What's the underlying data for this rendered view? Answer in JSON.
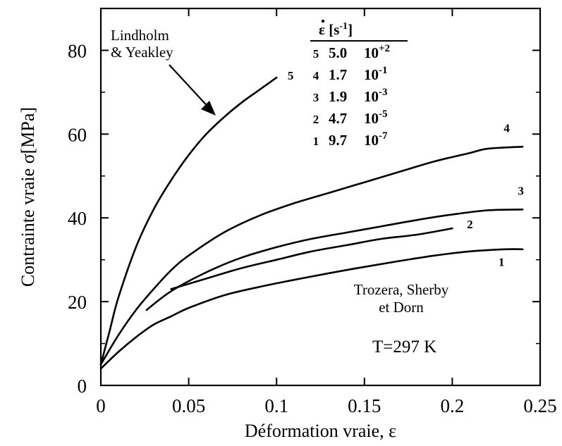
{
  "chart_data": {
    "type": "line",
    "xlabel": "Déformation vraie, ε",
    "ylabel": "Contrainte vraie σ[MPa]",
    "xlim": [
      0,
      0.25
    ],
    "ylim": [
      0,
      90
    ],
    "xticks": [
      0,
      0.05,
      0.1,
      0.15,
      0.2,
      0.25
    ],
    "xtick_labels": [
      "0",
      "0.05",
      "0.1",
      "0.15",
      "0.2",
      "0.25"
    ],
    "yticks": [
      0,
      20,
      40,
      60,
      80
    ],
    "ytick_labels": [
      "0",
      "20",
      "40",
      "60",
      "80"
    ],
    "grid": false,
    "legend": {
      "header_symbol": "ε",
      "header_unit": "[s",
      "header_exp": "-1",
      "header_close": "]",
      "rows": [
        {
          "label": "5",
          "mantissa": "5.0",
          "exponent": "10",
          "power": "+2"
        },
        {
          "label": "4",
          "mantissa": "1.7",
          "exponent": "10",
          "power": "-1"
        },
        {
          "label": "3",
          "mantissa": "1.9",
          "exponent": "10",
          "power": "-3"
        },
        {
          "label": "2",
          "mantissa": "4.7",
          "exponent": "10",
          "power": "-5"
        },
        {
          "label": "1",
          "mantissa": "9.7",
          "exponent": "10",
          "power": "-7"
        }
      ]
    },
    "series": [
      {
        "name": "5",
        "x": [
          0,
          0.005,
          0.01,
          0.02,
          0.03,
          0.04,
          0.05,
          0.06,
          0.07,
          0.08,
          0.09,
          0.1
        ],
        "y": [
          5,
          13,
          21,
          33,
          42,
          49,
          55,
          60,
          64,
          67.5,
          70.5,
          73.5
        ]
      },
      {
        "name": "4",
        "x": [
          0,
          0.01,
          0.02,
          0.03,
          0.04,
          0.05,
          0.07,
          0.09,
          0.11,
          0.13,
          0.15,
          0.17,
          0.19,
          0.21,
          0.22,
          0.24
        ],
        "y": [
          5,
          12,
          18,
          23,
          27.5,
          31,
          36.5,
          40.5,
          43.5,
          46,
          48.5,
          51,
          53.5,
          55.5,
          56.5,
          57
        ]
      },
      {
        "name": "3",
        "x": [
          0.026,
          0.04,
          0.06,
          0.08,
          0.1,
          0.12,
          0.14,
          0.16,
          0.18,
          0.2,
          0.22,
          0.24
        ],
        "y": [
          18,
          22.5,
          27,
          30.5,
          33,
          35,
          36.5,
          38,
          39.5,
          40.8,
          41.8,
          42
        ]
      },
      {
        "name": "2",
        "x": [
          0.04,
          0.06,
          0.08,
          0.1,
          0.12,
          0.14,
          0.16,
          0.18,
          0.2
        ],
        "y": [
          23,
          25.5,
          28,
          30,
          32,
          33.5,
          35,
          36,
          37.5
        ]
      },
      {
        "name": "1",
        "x": [
          0,
          0.01,
          0.02,
          0.03,
          0.04,
          0.05,
          0.07,
          0.09,
          0.11,
          0.13,
          0.15,
          0.17,
          0.19,
          0.21,
          0.23,
          0.24
        ],
        "y": [
          4,
          8,
          11.5,
          14.5,
          16.5,
          18.5,
          21.5,
          23.5,
          25.2,
          26.8,
          28.3,
          29.7,
          31,
          32,
          32.5,
          32.5
        ]
      }
    ],
    "curve_end_labels": [
      {
        "text": "5",
        "x": 0.108,
        "y": 73
      },
      {
        "text": "4",
        "x": 0.231,
        "y": 60.5
      },
      {
        "text": "3",
        "x": 0.239,
        "y": 45.5
      },
      {
        "text": "2",
        "x": 0.21,
        "y": 37.5
      },
      {
        "text": "1",
        "x": 0.228,
        "y": 28.5
      }
    ],
    "annotations": {
      "top_label": {
        "lines": [
          "Lindholm",
          "& Yeakley"
        ]
      },
      "bottom_label": {
        "lines": [
          "Trozera, Sherby",
          "et Dorn"
        ]
      },
      "temperature": "T=297 K"
    }
  }
}
